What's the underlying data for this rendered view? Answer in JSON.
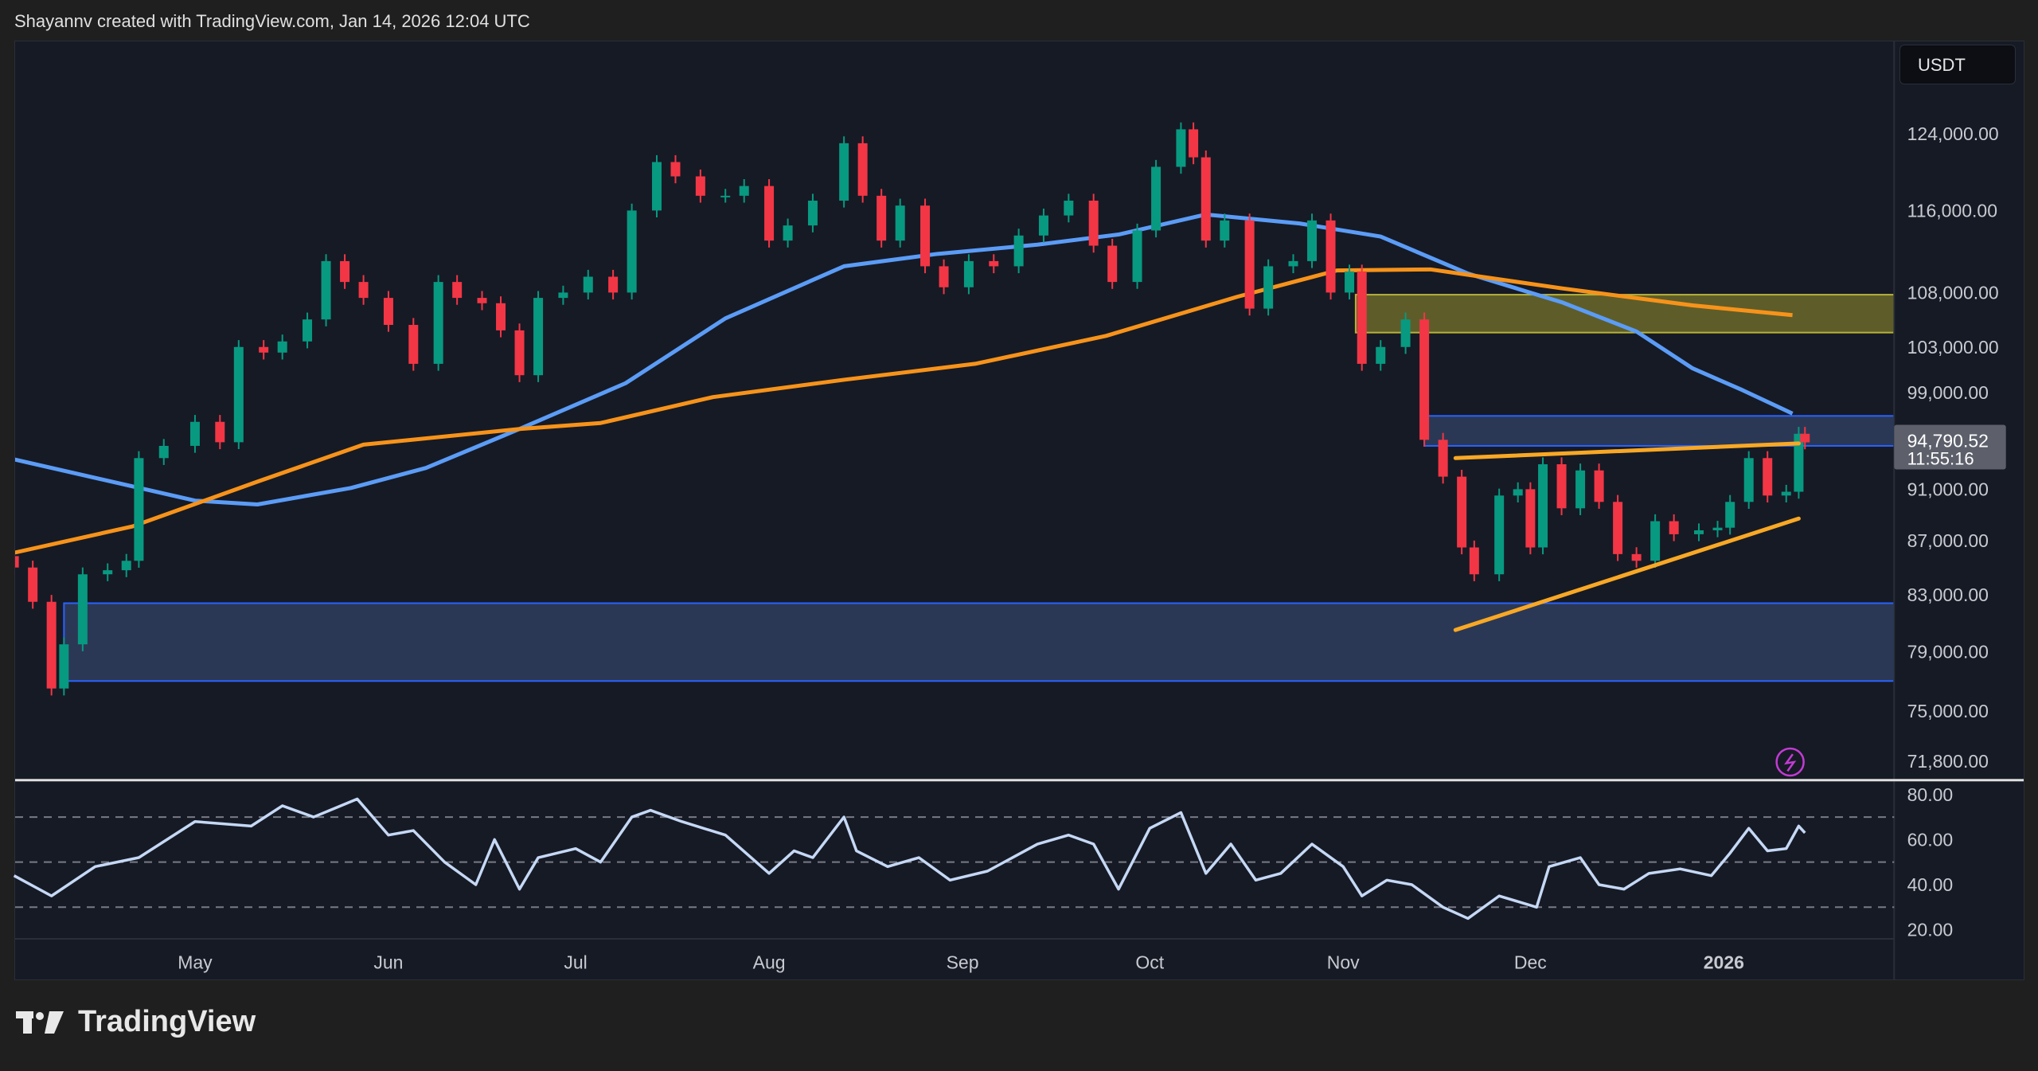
{
  "header": {
    "attribution": "Shayannv created with TradingView.com, Jan 14, 2026 12:04 UTC"
  },
  "currency_label": "USDT",
  "logo_text": "TradingView",
  "last_price": {
    "value": "94,790.52",
    "countdown": "11:55:16",
    "color": "#5d606b"
  },
  "colors": {
    "up": "#089981",
    "down": "#f23645",
    "ma_fast": "#5b9cf6",
    "ma_slow": "#f7931a",
    "rsi": "#c5d8f5",
    "zone_yellow": "#6b6a2a",
    "zone_blue": "#2f3e5e",
    "trendline": "#f9a825",
    "background": "#161a25"
  },
  "chart_data": [
    {
      "type": "candlestick",
      "price_scale": "log",
      "ylim": [
        71800,
        128000
      ],
      "y_ticks": [
        "124,000.00",
        "116,000.00",
        "108,000.00",
        "103,000.00",
        "99,000.00",
        "91,000.00",
        "87,000.00",
        "83,000.00",
        "79,000.00",
        "75,000.00",
        "71,800.00"
      ],
      "y_tick_values": [
        124000,
        116000,
        108000,
        103000,
        99000,
        91000,
        87000,
        83000,
        79000,
        75000,
        71800
      ],
      "x_ticks": [
        {
          "label": "May",
          "date": "2025-05-01"
        },
        {
          "label": "Jun",
          "date": "2025-06-01"
        },
        {
          "label": "Jul",
          "date": "2025-07-01"
        },
        {
          "label": "Aug",
          "date": "2025-08-01"
        },
        {
          "label": "Sep",
          "date": "2025-09-01"
        },
        {
          "label": "Oct",
          "date": "2025-10-01"
        },
        {
          "label": "Nov",
          "date": "2025-11-01"
        },
        {
          "label": "Dec",
          "date": "2025-12-01"
        },
        {
          "label": "2026",
          "date": "2026-01-01"
        }
      ],
      "closes": [
        [
          "2025-04-02",
          85000
        ],
        [
          "2025-04-05",
          82500
        ],
        [
          "2025-04-08",
          76500
        ],
        [
          "2025-04-10",
          79500
        ],
        [
          "2025-04-13",
          84500
        ],
        [
          "2025-04-17",
          84800
        ],
        [
          "2025-04-20",
          85500
        ],
        [
          "2025-04-22",
          93500
        ],
        [
          "2025-04-26",
          94500
        ],
        [
          "2025-05-01",
          96500
        ],
        [
          "2025-05-05",
          94800
        ],
        [
          "2025-05-08",
          103000
        ],
        [
          "2025-05-12",
          102500
        ],
        [
          "2025-05-15",
          103500
        ],
        [
          "2025-05-19",
          105500
        ],
        [
          "2025-05-22",
          111000
        ],
        [
          "2025-05-25",
          109000
        ],
        [
          "2025-05-28",
          107500
        ],
        [
          "2025-06-01",
          105000
        ],
        [
          "2025-06-05",
          101500
        ],
        [
          "2025-06-09",
          109000
        ],
        [
          "2025-06-12",
          107500
        ],
        [
          "2025-06-16",
          107000
        ],
        [
          "2025-06-19",
          104500
        ],
        [
          "2025-06-22",
          100500
        ],
        [
          "2025-06-25",
          107500
        ],
        [
          "2025-06-29",
          108000
        ],
        [
          "2025-07-03",
          109500
        ],
        [
          "2025-07-07",
          108000
        ],
        [
          "2025-07-10",
          116000
        ],
        [
          "2025-07-14",
          121000
        ],
        [
          "2025-07-17",
          119500
        ],
        [
          "2025-07-21",
          117500
        ],
        [
          "2025-07-25",
          117500
        ],
        [
          "2025-07-28",
          118500
        ],
        [
          "2025-08-01",
          113000
        ],
        [
          "2025-08-04",
          114500
        ],
        [
          "2025-08-08",
          117000
        ],
        [
          "2025-08-13",
          123000
        ],
        [
          "2025-08-16",
          117500
        ],
        [
          "2025-08-19",
          113000
        ],
        [
          "2025-08-22",
          116500
        ],
        [
          "2025-08-26",
          110500
        ],
        [
          "2025-08-29",
          108500
        ],
        [
          "2025-09-02",
          111000
        ],
        [
          "2025-09-06",
          110500
        ],
        [
          "2025-09-10",
          113500
        ],
        [
          "2025-09-14",
          115500
        ],
        [
          "2025-09-18",
          117000
        ],
        [
          "2025-09-22",
          112500
        ],
        [
          "2025-09-25",
          109000
        ],
        [
          "2025-09-29",
          114000
        ],
        [
          "2025-10-02",
          120500
        ],
        [
          "2025-10-06",
          124500
        ],
        [
          "2025-10-08",
          121500
        ],
        [
          "2025-10-10",
          113000
        ],
        [
          "2025-10-13",
          115000
        ],
        [
          "2025-10-17",
          106500
        ],
        [
          "2025-10-20",
          110500
        ],
        [
          "2025-10-24",
          111000
        ],
        [
          "2025-10-27",
          115000
        ],
        [
          "2025-10-30",
          108000
        ],
        [
          "2025-11-02",
          110000
        ],
        [
          "2025-11-04",
          101500
        ],
        [
          "2025-11-07",
          103000
        ],
        [
          "2025-11-11",
          105500
        ],
        [
          "2025-11-14",
          95000
        ],
        [
          "2025-11-17",
          92000
        ],
        [
          "2025-11-20",
          86500
        ],
        [
          "2025-11-22",
          84500
        ],
        [
          "2025-11-26",
          90500
        ],
        [
          "2025-11-29",
          91000
        ],
        [
          "2025-12-01",
          86500
        ],
        [
          "2025-12-03",
          93000
        ],
        [
          "2025-12-06",
          89500
        ],
        [
          "2025-12-09",
          92500
        ],
        [
          "2025-12-12",
          90000
        ],
        [
          "2025-12-15",
          86000
        ],
        [
          "2025-12-18",
          85500
        ],
        [
          "2025-12-21",
          88500
        ],
        [
          "2025-12-24",
          87500
        ],
        [
          "2025-12-28",
          87800
        ],
        [
          "2025-12-31",
          88000
        ],
        [
          "2026-01-02",
          90000
        ],
        [
          "2026-01-05",
          93500
        ],
        [
          "2026-01-08",
          90500
        ],
        [
          "2026-01-11",
          90800
        ],
        [
          "2026-01-13",
          95500
        ],
        [
          "2026-01-14",
          94790.52
        ]
      ],
      "moving_averages": [
        {
          "color": "#5b9cf6",
          "points": [
            [
              "2025-04-02",
              93400
            ],
            [
              "2025-05-01",
              90100
            ],
            [
              "2025-05-11",
              89800
            ],
            [
              "2025-05-26",
              91100
            ],
            [
              "2025-06-07",
              92700
            ],
            [
              "2025-06-22",
              95900
            ],
            [
              "2025-07-09",
              99800
            ],
            [
              "2025-07-25",
              105600
            ],
            [
              "2025-08-13",
              110500
            ],
            [
              "2025-08-28",
              111700
            ],
            [
              "2025-09-13",
              112600
            ],
            [
              "2025-09-26",
              113600
            ],
            [
              "2025-10-10",
              115600
            ],
            [
              "2025-10-25",
              114700
            ],
            [
              "2025-11-07",
              113400
            ],
            [
              "2025-11-21",
              109800
            ],
            [
              "2025-12-06",
              107100
            ],
            [
              "2025-12-18",
              104400
            ],
            [
              "2025-12-27",
              101100
            ],
            [
              "2026-01-04",
              99200
            ],
            [
              "2026-01-12",
              97200
            ]
          ]
        },
        {
          "color": "#f7931a",
          "points": [
            [
              "2025-04-02",
              86100
            ],
            [
              "2025-04-21",
              88100
            ],
            [
              "2025-05-11",
              91600
            ],
            [
              "2025-05-28",
              94600
            ],
            [
              "2025-06-22",
              95900
            ],
            [
              "2025-07-05",
              96400
            ],
            [
              "2025-07-23",
              98600
            ],
            [
              "2025-08-13",
              100100
            ],
            [
              "2025-09-03",
              101500
            ],
            [
              "2025-09-24",
              104000
            ],
            [
              "2025-10-15",
              107600
            ],
            [
              "2025-10-31",
              110100
            ],
            [
              "2025-11-15",
              110200
            ],
            [
              "2025-12-06",
              108400
            ],
            [
              "2025-12-27",
              106800
            ],
            [
              "2026-01-12",
              105900
            ]
          ]
        }
      ],
      "zones": [
        {
          "color": "#6b6a2a",
          "from": "2025-11-03",
          "to": "2026-01-31",
          "high": 107800,
          "low": 104300
        },
        {
          "color": "#2f3e5e",
          "from": "2025-11-14",
          "to": "2026-01-31",
          "high": 97000,
          "low": 94500
        },
        {
          "color": "#2f3e5e",
          "from": "2025-04-10",
          "to": "2026-01-31",
          "high": 82400,
          "low": 77000
        }
      ],
      "trendlines": [
        {
          "from": [
            "2025-11-19",
            93500
          ],
          "to": [
            "2026-01-13",
            94700
          ]
        },
        {
          "from": [
            "2025-11-19",
            80500
          ],
          "to": [
            "2026-01-13",
            88700
          ]
        }
      ]
    },
    {
      "type": "line",
      "ylim": [
        15,
        85
      ],
      "y_ticks": [
        "80.00",
        "60.00",
        "40.00",
        "20.00"
      ],
      "y_tick_values": [
        80,
        60,
        40,
        20
      ],
      "bands": [
        70,
        50,
        30
      ],
      "values": [
        [
          "2025-04-02",
          44
        ],
        [
          "2025-04-08",
          35
        ],
        [
          "2025-04-15",
          48
        ],
        [
          "2025-04-22",
          52
        ],
        [
          "2025-05-01",
          68
        ],
        [
          "2025-05-10",
          66
        ],
        [
          "2025-05-15",
          75
        ],
        [
          "2025-05-20",
          70
        ],
        [
          "2025-05-27",
          78
        ],
        [
          "2025-06-01",
          62
        ],
        [
          "2025-06-05",
          64
        ],
        [
          "2025-06-10",
          50
        ],
        [
          "2025-06-15",
          40
        ],
        [
          "2025-06-18",
          60
        ],
        [
          "2025-06-22",
          38
        ],
        [
          "2025-06-25",
          52
        ],
        [
          "2025-07-01",
          56
        ],
        [
          "2025-07-05",
          50
        ],
        [
          "2025-07-10",
          70
        ],
        [
          "2025-07-13",
          73
        ],
        [
          "2025-07-18",
          68
        ],
        [
          "2025-07-25",
          62
        ],
        [
          "2025-08-01",
          45
        ],
        [
          "2025-08-05",
          55
        ],
        [
          "2025-08-08",
          52
        ],
        [
          "2025-08-13",
          70
        ],
        [
          "2025-08-15",
          55
        ],
        [
          "2025-08-20",
          48
        ],
        [
          "2025-08-25",
          52
        ],
        [
          "2025-08-30",
          42
        ],
        [
          "2025-09-05",
          46
        ],
        [
          "2025-09-13",
          58
        ],
        [
          "2025-09-18",
          62
        ],
        [
          "2025-09-22",
          58
        ],
        [
          "2025-09-26",
          38
        ],
        [
          "2025-10-01",
          65
        ],
        [
          "2025-10-06",
          72
        ],
        [
          "2025-10-10",
          45
        ],
        [
          "2025-10-14",
          58
        ],
        [
          "2025-10-18",
          42
        ],
        [
          "2025-10-22",
          45
        ],
        [
          "2025-10-27",
          58
        ],
        [
          "2025-11-01",
          48
        ],
        [
          "2025-11-04",
          35
        ],
        [
          "2025-11-08",
          42
        ],
        [
          "2025-11-12",
          40
        ],
        [
          "2025-11-17",
          30
        ],
        [
          "2025-11-21",
          25
        ],
        [
          "2025-11-26",
          35
        ],
        [
          "2025-12-02",
          30
        ],
        [
          "2025-12-04",
          48
        ],
        [
          "2025-12-09",
          52
        ],
        [
          "2025-12-12",
          40
        ],
        [
          "2025-12-16",
          38
        ],
        [
          "2025-12-20",
          45
        ],
        [
          "2025-12-25",
          47
        ],
        [
          "2025-12-30",
          44
        ],
        [
          "2026-01-02",
          54
        ],
        [
          "2026-01-05",
          65
        ],
        [
          "2026-01-08",
          55
        ],
        [
          "2026-01-11",
          56
        ],
        [
          "2026-01-13",
          66
        ],
        [
          "2026-01-14",
          63
        ]
      ]
    }
  ]
}
